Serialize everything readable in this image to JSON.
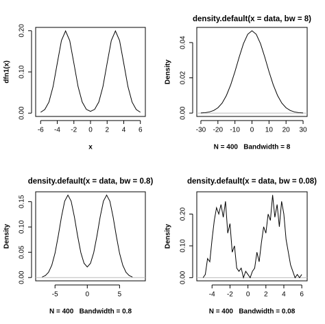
{
  "chart_data": [
    {
      "type": "line",
      "xlabel": "x",
      "ylabel": "dfn1(x)",
      "x": [
        -6,
        -5.5,
        -5,
        -4.5,
        -4,
        -3.5,
        -3,
        -2.5,
        -2,
        -1.5,
        -1,
        -0.5,
        0,
        0.5,
        1,
        1.5,
        2,
        2.5,
        3,
        3.5,
        4,
        4.5,
        5,
        5.5,
        6
      ],
      "values": [
        0.0022,
        0.0088,
        0.027,
        0.0648,
        0.121,
        0.176,
        0.1995,
        0.176,
        0.1211,
        0.0648,
        0.0271,
        0.0092,
        0.0044,
        0.0092,
        0.0271,
        0.0648,
        0.1211,
        0.176,
        0.1995,
        0.176,
        0.121,
        0.0648,
        0.027,
        0.0088,
        0.0022
      ],
      "color": "#000000",
      "zero_line": false,
      "xlim": [
        -6.6,
        6.6
      ],
      "xticks": [
        -6,
        -4,
        -2,
        0,
        2,
        4,
        6
      ],
      "ylim": [
        -0.008,
        0.208
      ],
      "yticks": [
        {
          "value": 0,
          "label": "0.00"
        },
        {
          "value": 0.1,
          "label": "0.10"
        },
        {
          "value": 0.2,
          "label": "0.20"
        }
      ]
    },
    {
      "type": "line",
      "title": "density.default(x = data, bw = 8)",
      "xlabel": "N = 400   Bandwidth = 8",
      "ylabel": "Density",
      "x": [
        -30,
        -27.5,
        -25,
        -22.5,
        -20,
        -17.5,
        -15,
        -12.5,
        -10,
        -7.5,
        -5,
        -2.5,
        0,
        2.5,
        5,
        7.5,
        10,
        12.5,
        15,
        17.5,
        20,
        22.5,
        25,
        27.5,
        30
      ],
      "values": [
        0.0001,
        0.00026,
        0.00065,
        0.00146,
        0.003,
        0.0057,
        0.01,
        0.016,
        0.0235,
        0.0318,
        0.0394,
        0.0447,
        0.0467,
        0.0447,
        0.0394,
        0.0318,
        0.0235,
        0.016,
        0.01,
        0.0057,
        0.003,
        0.00146,
        0.00065,
        0.00026,
        0.0001
      ],
      "color": "#000000",
      "zero_line": true,
      "xlim": [
        -32.4,
        32.4
      ],
      "xticks": [
        -30,
        -20,
        -10,
        0,
        10,
        20,
        30
      ],
      "ylim": [
        -0.0019,
        0.0486
      ],
      "yticks": [
        {
          "value": 0,
          "label": "0.00"
        },
        {
          "value": 0.02,
          "label": "0.02"
        },
        {
          "value": 0.04,
          "label": "0.04"
        }
      ]
    },
    {
      "type": "line",
      "title": "density.default(x = data, bw = 0.8)",
      "xlabel": "N = 400   Bandwidth = 0.8",
      "ylabel": "Density",
      "x": [
        -7,
        -6.5,
        -6,
        -5.5,
        -5,
        -4.5,
        -4,
        -3.5,
        -3,
        -2.5,
        -2,
        -1.5,
        -1,
        -0.5,
        0,
        0.5,
        1,
        1.5,
        2,
        2.5,
        3,
        3.5,
        4,
        4.5,
        5,
        5.5,
        6,
        6.5,
        7
      ],
      "values": [
        0.0012,
        0.0039,
        0.0104,
        0.0243,
        0.0481,
        0.0822,
        0.12,
        0.151,
        0.163,
        0.151,
        0.1202,
        0.0825,
        0.0493,
        0.0282,
        0.0209,
        0.0282,
        0.0493,
        0.0825,
        0.1202,
        0.151,
        0.163,
        0.151,
        0.12,
        0.0822,
        0.0481,
        0.0243,
        0.0104,
        0.0039,
        0.0012
      ],
      "color": "#000000",
      "zero_line": true,
      "xlim": [
        -8,
        9
      ],
      "xticks": [
        -5,
        0,
        5
      ],
      "ylim": [
        -0.0065,
        0.1695
      ],
      "yticks": [
        {
          "value": 0,
          "label": "0.00"
        },
        {
          "value": 0.05,
          "label": "0.05"
        },
        {
          "value": 0.1,
          "label": "0.10"
        },
        {
          "value": 0.15,
          "label": "0.15"
        }
      ]
    },
    {
      "type": "line",
      "title": "density.default(x = data, bw = 0.08)",
      "xlabel": "N = 400   Bandwidth = 0.08",
      "ylabel": "Density",
      "x": [
        -5,
        -4.75,
        -4.5,
        -4.25,
        -4,
        -3.75,
        -3.5,
        -3.25,
        -3,
        -2.75,
        -2.5,
        -2.25,
        -2,
        -1.75,
        -1.5,
        -1.25,
        -1,
        -0.75,
        -0.5,
        -0.25,
        0,
        0.25,
        0.5,
        0.75,
        1,
        1.25,
        1.5,
        1.75,
        2,
        2.25,
        2.5,
        2.75,
        3,
        3.25,
        3.5,
        3.75,
        4,
        4.25,
        4.5,
        4.75,
        5,
        5.25,
        5.5,
        5.75,
        6
      ],
      "values": [
        0,
        0.01,
        0.06,
        0.05,
        0.12,
        0.18,
        0.22,
        0.2,
        0.23,
        0.19,
        0.24,
        0.14,
        0.17,
        0.08,
        0.1,
        0.03,
        0.02,
        0.03,
        0,
        0.02,
        0.01,
        0,
        0.02,
        0.03,
        0.08,
        0.05,
        0.11,
        0.16,
        0.14,
        0.2,
        0.18,
        0.26,
        0.19,
        0.23,
        0.16,
        0.24,
        0.2,
        0.12,
        0.08,
        0.04,
        0.02,
        0,
        0.01,
        0,
        0.01
      ],
      "color": "#000000",
      "zero_line": true,
      "xlim": [
        -5.7,
        6.6
      ],
      "xticks": [
        -4,
        -2,
        0,
        2,
        4,
        6
      ],
      "ylim": [
        -0.01,
        0.27
      ],
      "yticks": [
        {
          "value": 0,
          "label": "0.00"
        },
        {
          "value": 0.1,
          "label": "0.10"
        },
        {
          "value": 0.2,
          "label": "0.20"
        }
      ]
    }
  ]
}
